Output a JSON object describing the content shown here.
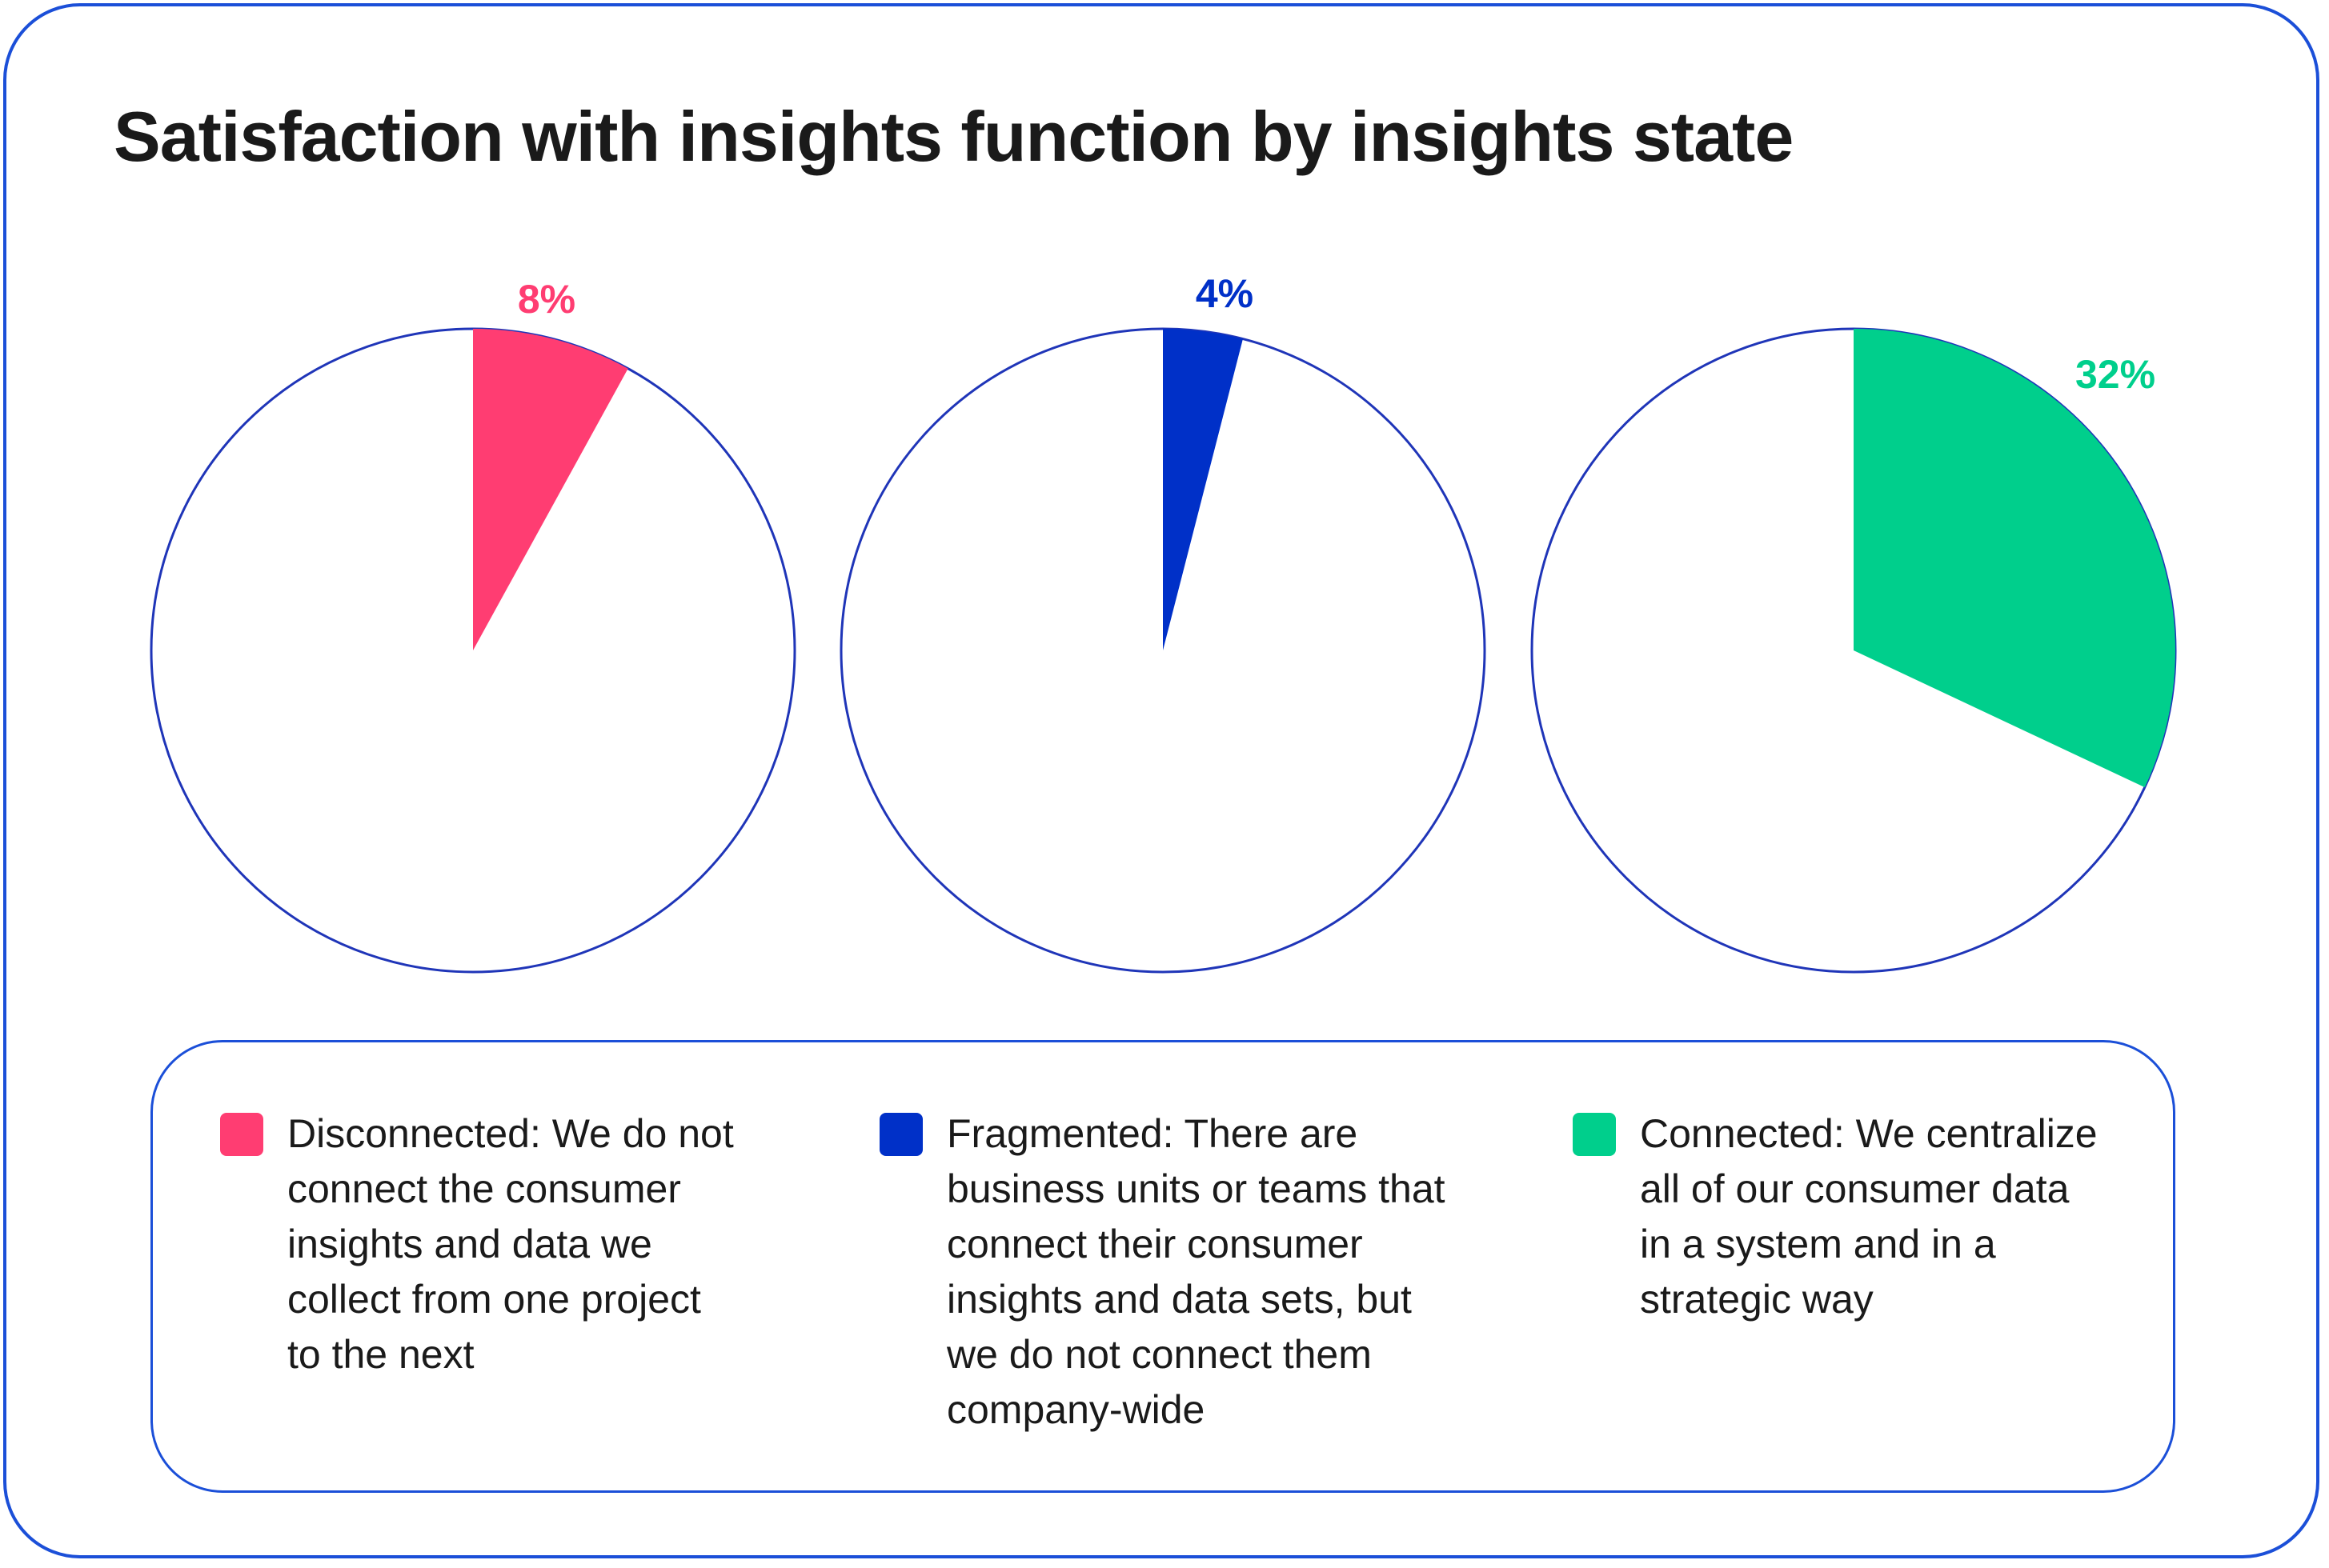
{
  "title": "Satisfaction with insights function by insights state",
  "colors": {
    "border": "#1b4fd8",
    "outline": "#1f35b8"
  },
  "chart_data": {
    "type": "pie",
    "title": "Satisfaction with insights function by insights state",
    "series": [
      {
        "name": "Disconnected",
        "value": 8,
        "label": "8%",
        "color": "#ff3d72"
      },
      {
        "name": "Fragmented",
        "value": 4,
        "label": "4%",
        "color": "#0030c8"
      },
      {
        "name": "Connected",
        "value": 32,
        "label": "32%",
        "color": "#00cf8c"
      }
    ],
    "legend": {
      "placement": "bottom",
      "items": [
        {
          "color": "#ff3d72",
          "lines": [
            "Disconnected: We do not",
            "connect the consumer",
            "insights and data we",
            "collect from one project",
            "to the next"
          ]
        },
        {
          "color": "#0030c8",
          "lines": [
            "Fragmented: There are",
            "business units or teams that",
            "connect their consumer",
            "insights and data sets, but",
            "we do not connect them",
            "company-wide"
          ]
        },
        {
          "color": "#00cf8c",
          "lines": [
            "Connected: We centralize",
            "all of our consumer data",
            "in a system and in a",
            "strategic way"
          ]
        }
      ]
    }
  }
}
